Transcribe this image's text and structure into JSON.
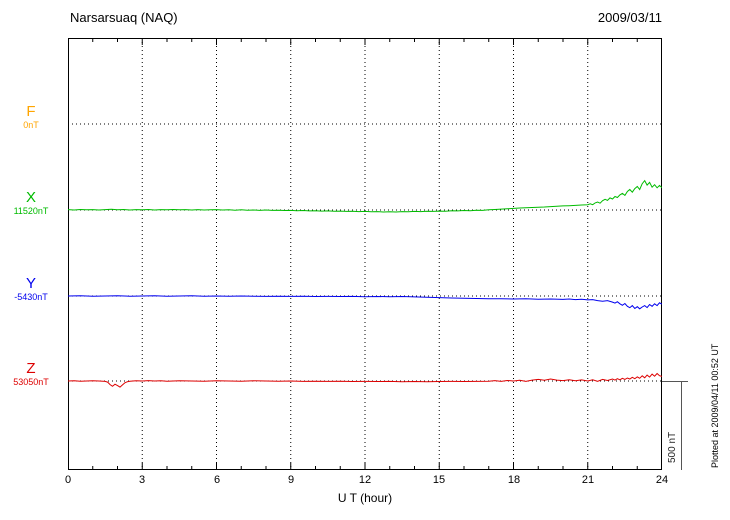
{
  "header": {
    "title": "Narsarsuaq (NAQ)",
    "date": "2009/03/11"
  },
  "scale_bar": {
    "label": "500 nT"
  },
  "note": "Plotted at 2009/04/11 00:52 UT",
  "chart_data": {
    "type": "line",
    "title": "Narsarsuaq (NAQ)",
    "date": "2009/03/11",
    "xlabel": "U T (hour)",
    "xlim": [
      0,
      24
    ],
    "x_ticks": [
      0,
      3,
      6,
      9,
      12,
      15,
      18,
      21,
      24
    ],
    "grid": "dotted vertical at 3h intervals, dotted horizontal at each component baseline",
    "scale_bar_nT": 500,
    "series": [
      {
        "name": "F",
        "value_label": "0nT",
        "baseline_nT": 0,
        "color": "#FFA500",
        "points": []
      },
      {
        "name": "X",
        "value_label": "11520nT",
        "baseline_nT": 11520,
        "color": "#00BB00",
        "points": [
          [
            0,
            2
          ],
          [
            0.25,
            0
          ],
          [
            0.5,
            3
          ],
          [
            0.75,
            1
          ],
          [
            1,
            2
          ],
          [
            1.25,
            0
          ],
          [
            1.5,
            2
          ],
          [
            1.75,
            4
          ],
          [
            2,
            1
          ],
          [
            2.25,
            3
          ],
          [
            2.5,
            0
          ],
          [
            2.75,
            2
          ],
          [
            3,
            1
          ],
          [
            3.25,
            3
          ],
          [
            3.5,
            0
          ],
          [
            3.75,
            2
          ],
          [
            4,
            1
          ],
          [
            4.25,
            3
          ],
          [
            4.5,
            1
          ],
          [
            4.75,
            2
          ],
          [
            5,
            0
          ],
          [
            5.25,
            2
          ],
          [
            5.5,
            0
          ],
          [
            5.75,
            1
          ],
          [
            6,
            2
          ],
          [
            6.25,
            0
          ],
          [
            6.5,
            1
          ],
          [
            6.75,
            -1
          ],
          [
            7,
            1
          ],
          [
            7.25,
            -1
          ],
          [
            7.5,
            0
          ],
          [
            7.75,
            -2
          ],
          [
            8,
            0
          ],
          [
            8.25,
            -2
          ],
          [
            8.5,
            -1
          ],
          [
            8.75,
            -3
          ],
          [
            9,
            -2
          ],
          [
            9.25,
            -4
          ],
          [
            9.5,
            -3
          ],
          [
            9.75,
            -5
          ],
          [
            10,
            -4
          ],
          [
            10.25,
            -6
          ],
          [
            10.5,
            -5
          ],
          [
            10.75,
            -7
          ],
          [
            11,
            -6
          ],
          [
            11.25,
            -8
          ],
          [
            11.5,
            -7
          ],
          [
            11.75,
            -9
          ],
          [
            12,
            -8
          ],
          [
            12.25,
            -10
          ],
          [
            12.5,
            -9
          ],
          [
            12.75,
            -11
          ],
          [
            13,
            -10
          ],
          [
            13.25,
            -11
          ],
          [
            13.5,
            -9
          ],
          [
            13.75,
            -10
          ],
          [
            14,
            -8
          ],
          [
            14.25,
            -9
          ],
          [
            14.5,
            -7
          ],
          [
            14.75,
            -8
          ],
          [
            15,
            -6
          ],
          [
            15.25,
            -7
          ],
          [
            15.5,
            -4
          ],
          [
            15.75,
            -5
          ],
          [
            16,
            -3
          ],
          [
            16.25,
            -4
          ],
          [
            16.5,
            -1
          ],
          [
            16.75,
            -2
          ],
          [
            17,
            1
          ],
          [
            17.25,
            3
          ],
          [
            17.5,
            5
          ],
          [
            17.75,
            7
          ],
          [
            18,
            9
          ],
          [
            18.25,
            11
          ],
          [
            18.5,
            13
          ],
          [
            18.75,
            14
          ],
          [
            19,
            16
          ],
          [
            19.25,
            17
          ],
          [
            19.5,
            19
          ],
          [
            19.75,
            21
          ],
          [
            20,
            23
          ],
          [
            20.25,
            24
          ],
          [
            20.5,
            26
          ],
          [
            20.75,
            28
          ],
          [
            21,
            30
          ],
          [
            21.1,
            35
          ],
          [
            21.2,
            30
          ],
          [
            21.3,
            40
          ],
          [
            21.4,
            45
          ],
          [
            21.5,
            38
          ],
          [
            21.6,
            52
          ],
          [
            21.7,
            60
          ],
          [
            21.8,
            54
          ],
          [
            21.9,
            68
          ],
          [
            22,
            62
          ],
          [
            22.1,
            76
          ],
          [
            22.2,
            70
          ],
          [
            22.3,
            85
          ],
          [
            22.4,
            93
          ],
          [
            22.5,
            82
          ],
          [
            22.6,
            104
          ],
          [
            22.7,
            115
          ],
          [
            22.8,
            100
          ],
          [
            22.9,
            120
          ],
          [
            23,
            132
          ],
          [
            23.1,
            115
          ],
          [
            23.2,
            148
          ],
          [
            23.3,
            165
          ],
          [
            23.4,
            140
          ],
          [
            23.5,
            155
          ],
          [
            23.6,
            128
          ],
          [
            23.7,
            142
          ],
          [
            23.8,
            125
          ],
          [
            23.9,
            138
          ],
          [
            24,
            125
          ]
        ]
      },
      {
        "name": "Y",
        "value_label": "-5430nT",
        "baseline_nT": -5430,
        "color": "#0000EE",
        "points": [
          [
            0,
            0
          ],
          [
            0.5,
            1
          ],
          [
            1,
            -1
          ],
          [
            1.5,
            0
          ],
          [
            2,
            1
          ],
          [
            2.5,
            -1
          ],
          [
            3,
            0
          ],
          [
            3.5,
            1
          ],
          [
            4,
            -1
          ],
          [
            4.5,
            0
          ],
          [
            5,
            1
          ],
          [
            5.5,
            -1
          ],
          [
            6,
            0
          ],
          [
            6.5,
            -1
          ],
          [
            7,
            0
          ],
          [
            7.5,
            -1
          ],
          [
            8,
            -2
          ],
          [
            8.5,
            -1
          ],
          [
            9,
            -2
          ],
          [
            9.5,
            -1
          ],
          [
            10,
            -3
          ],
          [
            10.5,
            -2
          ],
          [
            11,
            -3
          ],
          [
            11.5,
            -2
          ],
          [
            12,
            -4
          ],
          [
            12.5,
            -3
          ],
          [
            13,
            -4
          ],
          [
            13.5,
            -3
          ],
          [
            14,
            -5
          ],
          [
            14.5,
            -7
          ],
          [
            15,
            -9
          ],
          [
            15.5,
            -11
          ],
          [
            16,
            -13
          ],
          [
            16.5,
            -14
          ],
          [
            17,
            -15
          ],
          [
            17.5,
            -16
          ],
          [
            18,
            -17
          ],
          [
            18.5,
            -16
          ],
          [
            19,
            -18
          ],
          [
            19.5,
            -17
          ],
          [
            20,
            -19
          ],
          [
            20.25,
            -17
          ],
          [
            20.5,
            -20
          ],
          [
            20.75,
            -18
          ],
          [
            21,
            -22
          ],
          [
            21.2,
            -20
          ],
          [
            21.4,
            -26
          ],
          [
            21.6,
            -30
          ],
          [
            21.8,
            -26
          ],
          [
            22,
            -34
          ],
          [
            22.1,
            -40
          ],
          [
            22.2,
            -32
          ],
          [
            22.3,
            -44
          ],
          [
            22.4,
            -52
          ],
          [
            22.5,
            -42
          ],
          [
            22.6,
            -58
          ],
          [
            22.7,
            -66
          ],
          [
            22.8,
            -54
          ],
          [
            22.9,
            -70
          ],
          [
            23,
            -60
          ],
          [
            23.1,
            -72
          ],
          [
            23.2,
            -62
          ],
          [
            23.3,
            -54
          ],
          [
            23.4,
            -65
          ],
          [
            23.5,
            -48
          ],
          [
            23.6,
            -58
          ],
          [
            23.7,
            -44
          ],
          [
            23.8,
            -54
          ],
          [
            23.9,
            -38
          ],
          [
            24,
            -46
          ]
        ]
      },
      {
        "name": "Z",
        "value_label": "53050nT",
        "baseline_nT": 53050,
        "color": "#DD0000",
        "points": [
          [
            0,
            0
          ],
          [
            0.25,
            1
          ],
          [
            0.5,
            -1
          ],
          [
            0.75,
            0
          ],
          [
            1,
            1
          ],
          [
            1.25,
            0
          ],
          [
            1.5,
            -2
          ],
          [
            1.6,
            -6
          ],
          [
            1.7,
            -20
          ],
          [
            1.8,
            -30
          ],
          [
            1.9,
            -18
          ],
          [
            2,
            -26
          ],
          [
            2.1,
            -34
          ],
          [
            2.2,
            -22
          ],
          [
            2.3,
            -10
          ],
          [
            2.4,
            -4
          ],
          [
            2.5,
            -1
          ],
          [
            2.75,
            1
          ],
          [
            3,
            0
          ],
          [
            3.25,
            2
          ],
          [
            3.5,
            0
          ],
          [
            3.75,
            1
          ],
          [
            4,
            -1
          ],
          [
            4.5,
            1
          ],
          [
            5,
            0
          ],
          [
            5.5,
            -1
          ],
          [
            6,
            1
          ],
          [
            6.5,
            0
          ],
          [
            7,
            -1
          ],
          [
            7.5,
            1
          ],
          [
            8,
            0
          ],
          [
            8.5,
            -1
          ],
          [
            9,
            0
          ],
          [
            9.5,
            -2
          ],
          [
            10,
            -1
          ],
          [
            10.5,
            -2
          ],
          [
            11,
            -1
          ],
          [
            11.5,
            -3
          ],
          [
            12,
            -2
          ],
          [
            12.5,
            -3
          ],
          [
            13,
            -2
          ],
          [
            13.5,
            -4
          ],
          [
            14,
            -3
          ],
          [
            14.5,
            -4
          ],
          [
            15,
            -3
          ],
          [
            15.5,
            -2
          ],
          [
            16,
            -3
          ],
          [
            16.5,
            -2
          ],
          [
            17,
            -1
          ],
          [
            17.25,
            2
          ],
          [
            17.5,
            -2
          ],
          [
            17.75,
            3
          ],
          [
            18,
            0
          ],
          [
            18.25,
            4
          ],
          [
            18.5,
            -2
          ],
          [
            18.75,
            5
          ],
          [
            19,
            9
          ],
          [
            19.25,
            4
          ],
          [
            19.5,
            11
          ],
          [
            19.75,
            5
          ],
          [
            20,
            2
          ],
          [
            20.25,
            7
          ],
          [
            20.5,
            1
          ],
          [
            20.75,
            6
          ],
          [
            21,
            0
          ],
          [
            21.2,
            7
          ],
          [
            21.4,
            -2
          ],
          [
            21.6,
            9
          ],
          [
            21.8,
            3
          ],
          [
            22,
            11
          ],
          [
            22.1,
            5
          ],
          [
            22.2,
            13
          ],
          [
            22.3,
            7
          ],
          [
            22.4,
            15
          ],
          [
            22.5,
            9
          ],
          [
            22.6,
            17
          ],
          [
            22.7,
            11
          ],
          [
            22.8,
            21
          ],
          [
            22.9,
            13
          ],
          [
            23,
            23
          ],
          [
            23.1,
            15
          ],
          [
            23.2,
            29
          ],
          [
            23.3,
            18
          ],
          [
            23.4,
            33
          ],
          [
            23.5,
            22
          ],
          [
            23.6,
            39
          ],
          [
            23.7,
            27
          ],
          [
            23.8,
            42
          ],
          [
            23.9,
            30
          ],
          [
            24,
            26
          ]
        ]
      }
    ]
  }
}
